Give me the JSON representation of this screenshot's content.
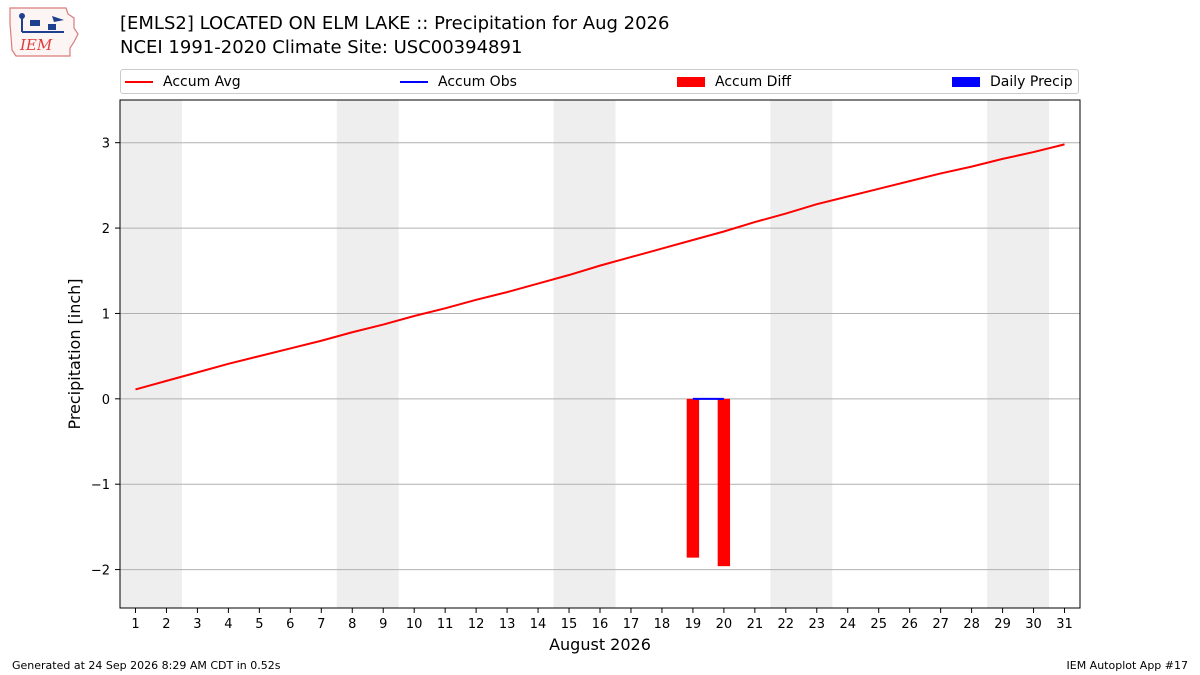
{
  "header": {
    "logo_text": "IEM",
    "title_line1": "[EMLS2] LOCATED ON ELM LAKE :: Precipitation for Aug 2026",
    "title_line2": "NCEI 1991-2020 Climate Site: USC00394891"
  },
  "legend": {
    "items": [
      {
        "label": "Accum Avg",
        "kind": "line",
        "color": "#ff0000"
      },
      {
        "label": "Accum Obs",
        "kind": "line",
        "color": "#0000ff"
      },
      {
        "label": "Accum Diff",
        "kind": "box",
        "color": "#ff0000"
      },
      {
        "label": "Daily Precip",
        "kind": "box",
        "color": "#0000ff"
      }
    ]
  },
  "footer": {
    "generated": "Generated at 24 Sep 2026 8:29 AM CDT in 0.52s",
    "app": "IEM Autoplot App #17"
  },
  "chart_data": {
    "type": "line",
    "xlabel": "August 2026",
    "ylabel": "Precipitation [inch]",
    "xlim": [
      0.5,
      31.5
    ],
    "ylim": [
      -2.45,
      3.5
    ],
    "x_ticks": [
      1,
      2,
      3,
      4,
      5,
      6,
      7,
      8,
      9,
      10,
      11,
      12,
      13,
      14,
      15,
      16,
      17,
      18,
      19,
      20,
      21,
      22,
      23,
      24,
      25,
      26,
      27,
      28,
      29,
      30,
      31
    ],
    "y_ticks": [
      -2,
      -1,
      0,
      1,
      2,
      3
    ],
    "y_tick_labels": [
      "−2",
      "−1",
      "0",
      "1",
      "2",
      "3"
    ],
    "weekend_shading": [
      [
        0.5,
        2.5
      ],
      [
        7.5,
        9.5
      ],
      [
        14.5,
        16.5
      ],
      [
        21.5,
        23.5
      ],
      [
        28.5,
        30.5
      ]
    ],
    "grid": "horizontal",
    "series": [
      {
        "name": "Accum Avg",
        "type": "line",
        "color": "#ff0000",
        "x": [
          1,
          2,
          3,
          4,
          5,
          6,
          7,
          8,
          9,
          10,
          11,
          12,
          13,
          14,
          15,
          16,
          17,
          18,
          19,
          20,
          21,
          22,
          23,
          24,
          25,
          26,
          27,
          28,
          29,
          30,
          31
        ],
        "values": [
          0.11,
          0.21,
          0.31,
          0.41,
          0.5,
          0.59,
          0.68,
          0.78,
          0.87,
          0.97,
          1.06,
          1.16,
          1.25,
          1.35,
          1.45,
          1.56,
          1.66,
          1.76,
          1.86,
          1.96,
          2.07,
          2.17,
          2.28,
          2.37,
          2.46,
          2.55,
          2.64,
          2.72,
          2.81,
          2.89,
          2.98
        ]
      },
      {
        "name": "Accum Obs",
        "type": "line",
        "color": "#0000ff",
        "x": [
          19,
          20
        ],
        "values": [
          0.0,
          0.0
        ]
      },
      {
        "name": "Accum Diff",
        "type": "bar",
        "color": "#ff0000",
        "x": [
          19,
          20
        ],
        "values": [
          -1.86,
          -1.96
        ]
      },
      {
        "name": "Daily Precip",
        "type": "bar",
        "color": "#0000ff",
        "x": [
          19,
          20
        ],
        "values": [
          0.0,
          0.0
        ]
      }
    ]
  }
}
